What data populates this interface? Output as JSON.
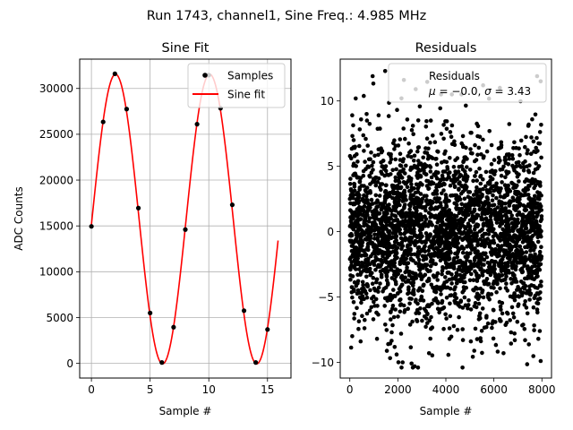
{
  "figure": {
    "suptitle": "Run 1743, channel1, Sine Freq.: 4.985 MHz"
  },
  "colors": {
    "sample_marker": "#000000",
    "fit_line": "#ff0000",
    "residual_marker": "#000000",
    "grid": "#b0b0b0"
  },
  "chart_data": [
    {
      "type": "line",
      "title": "Sine Fit",
      "xlabel": "Sample #",
      "ylabel": "ADC Counts",
      "xlim": [
        -1,
        17
      ],
      "ylim": [
        -1600,
        33200
      ],
      "xticks": [
        0,
        5,
        10,
        15
      ],
      "xtick_labels": [
        "0",
        "5",
        "10",
        "15"
      ],
      "yticks": [
        0,
        5000,
        10000,
        15000,
        20000,
        25000,
        30000
      ],
      "ytick_labels": [
        "0",
        "5000",
        "10000",
        "15000",
        "20000",
        "25000",
        "30000"
      ],
      "grid": true,
      "legend": {
        "placement": "upper right",
        "entries": [
          "Samples",
          "Sine fit"
        ]
      },
      "series": [
        {
          "name": "Samples",
          "kind": "scatter",
          "x": [
            0,
            1,
            2,
            3,
            4,
            5,
            6,
            7,
            8,
            9,
            10,
            11,
            12,
            13,
            14,
            15
          ],
          "y": [
            14950,
            26350,
            31600,
            27750,
            16950,
            5500,
            100,
            3950,
            14600,
            26100,
            31450,
            27850,
            17300,
            5750,
            100,
            3700
          ]
        },
        {
          "name": "Sine fit",
          "kind": "line",
          "model": {
            "offset": 15750,
            "amplitude": 15800,
            "period": 8.02,
            "phase_sample": 0.05
          },
          "x_range": [
            0,
            15.9
          ]
        }
      ]
    },
    {
      "type": "scatter",
      "title": "Residuals",
      "xlabel": "Sample #",
      "ylabel": "",
      "xlim": [
        -400,
        8400
      ],
      "ylim": [
        -11.2,
        13.2
      ],
      "xticks": [
        0,
        2000,
        4000,
        6000,
        8000
      ],
      "xtick_labels": [
        "0",
        "2000",
        "4000",
        "6000",
        "8000"
      ],
      "yticks": [
        -10,
        -5,
        0,
        5,
        10
      ],
      "ytick_labels": [
        "−10",
        "−5",
        "0",
        "5",
        "10"
      ],
      "grid": false,
      "legend": {
        "placement": "upper right",
        "entries": [
          "Residuals",
          "$\\mu$ = −0.0, $\\sigma$ = 3.43"
        ]
      },
      "series": [
        {
          "name": "Residuals",
          "mean": -0.0,
          "std": 3.43,
          "n_points": 8000,
          "x_range": [
            0,
            7999
          ],
          "sample_points": [
            [
              950,
              11.9
            ],
            [
              2250,
              11.6
            ],
            [
              2150,
              10.2
            ],
            [
              5550,
              11.2
            ],
            [
              6250,
              11.0
            ],
            [
              7800,
              11.9
            ],
            [
              7950,
              11.5
            ],
            [
              100,
              8.9
            ],
            [
              700,
              9.0
            ],
            [
              1200,
              8.9
            ],
            [
              3800,
              10.5
            ],
            [
              4250,
              10.5
            ],
            [
              4650,
              10.5
            ],
            [
              2200,
              -10.0
            ],
            [
              2700,
              -10.3
            ],
            [
              7950,
              -9.9
            ],
            [
              1950,
              -9.4
            ],
            [
              3300,
              -9.3
            ],
            [
              6400,
              -9.3
            ],
            [
              100,
              -8.0
            ],
            [
              450,
              -8.4
            ],
            [
              1600,
              -8.6
            ],
            [
              7300,
              -8.3
            ],
            [
              7850,
              -8.2
            ]
          ]
        }
      ]
    }
  ]
}
